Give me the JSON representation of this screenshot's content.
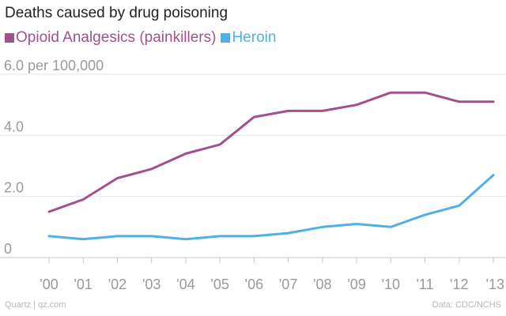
{
  "chart_data": {
    "type": "line",
    "title": "Deaths caused by drug poisoning",
    "categories": [
      "'00",
      "'01",
      "'02",
      "'03",
      "'04",
      "'05",
      "'06",
      "'07",
      "'08",
      "'09",
      "'10",
      "'11",
      "'12",
      "'13"
    ],
    "series": [
      {
        "name": "Opioid Analgesics (painkillers)",
        "color": "#a3508e",
        "values": [
          1.5,
          1.9,
          2.6,
          2.9,
          3.4,
          3.7,
          4.6,
          4.8,
          4.8,
          5.0,
          5.4,
          5.4,
          5.1,
          5.1
        ]
      },
      {
        "name": "Heroin",
        "color": "#4fb0e5",
        "values": [
          0.7,
          0.6,
          0.7,
          0.7,
          0.6,
          0.7,
          0.7,
          0.8,
          1.0,
          1.1,
          1.0,
          1.4,
          1.7,
          2.7
        ]
      }
    ],
    "yticks": [
      {
        "value": 0,
        "label": "0"
      },
      {
        "value": 2,
        "label": "2.0"
      },
      {
        "value": 4,
        "label": "4.0"
      },
      {
        "value": 6,
        "label": "6.0 per 100,000"
      }
    ],
    "ylim": [
      0,
      6
    ],
    "xlabel": "",
    "ylabel": "",
    "grid": true
  },
  "footer": {
    "source_left": "Quartz | qz.com",
    "source_right": "Data: CDC/NCHS"
  }
}
